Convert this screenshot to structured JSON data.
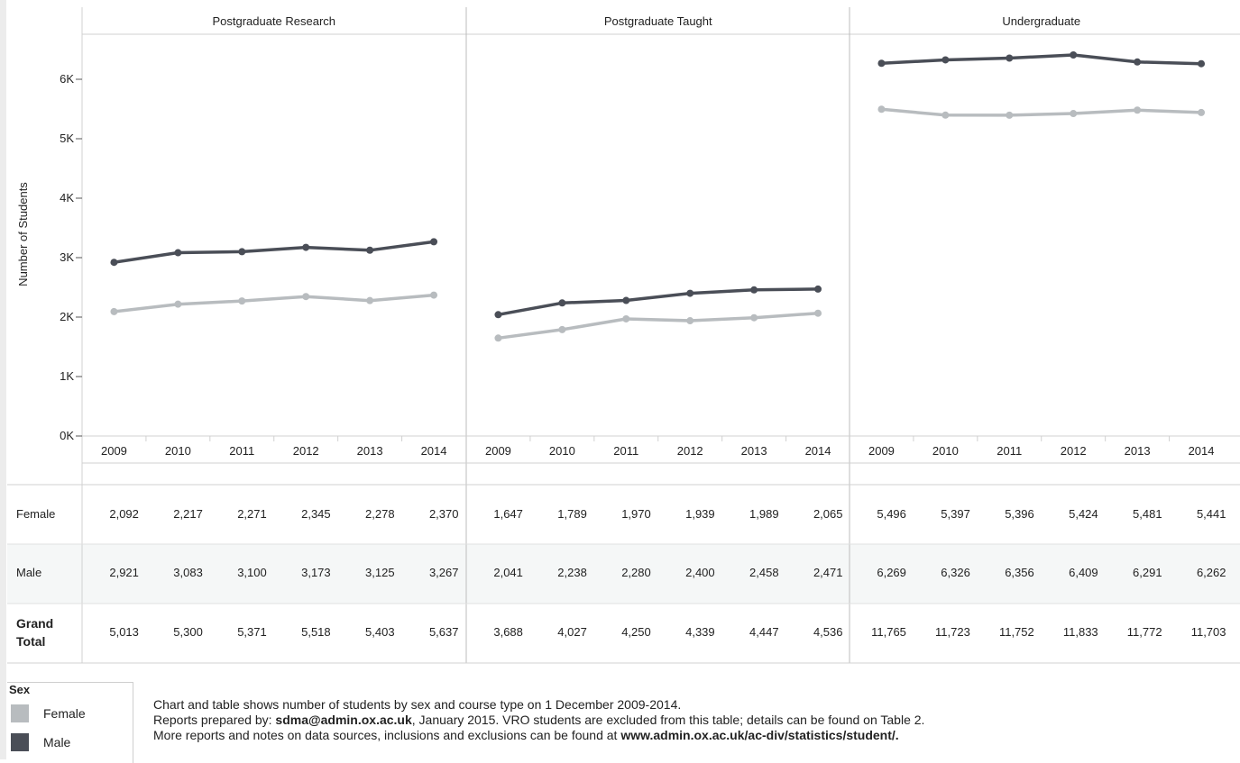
{
  "chart_data": {
    "type": "line",
    "ylabel": "Number of Students",
    "ylim": [
      0,
      6800
    ],
    "yticks": [
      {
        "value": 0,
        "label": "0K"
      },
      {
        "value": 1000,
        "label": "1K"
      },
      {
        "value": 2000,
        "label": "2K"
      },
      {
        "value": 3000,
        "label": "3K"
      },
      {
        "value": 4000,
        "label": "4K"
      },
      {
        "value": 5000,
        "label": "5K"
      },
      {
        "value": 6000,
        "label": "6K"
      }
    ],
    "x": [
      "2009",
      "2010",
      "2011",
      "2012",
      "2013",
      "2014"
    ],
    "panels": [
      {
        "title": "Postgraduate Research",
        "series": [
          {
            "name": "Female",
            "values": [
              2092,
              2217,
              2271,
              2345,
              2278,
              2370
            ]
          },
          {
            "name": "Male",
            "values": [
              2921,
              3083,
              3100,
              3173,
              3125,
              3267
            ]
          }
        ],
        "grand_total": [
          5013,
          5300,
          5371,
          5518,
          5403,
          5637
        ]
      },
      {
        "title": "Postgraduate Taught",
        "series": [
          {
            "name": "Female",
            "values": [
              1647,
              1789,
              1970,
              1939,
              1989,
              2065
            ]
          },
          {
            "name": "Male",
            "values": [
              2041,
              2238,
              2280,
              2400,
              2458,
              2471
            ]
          }
        ],
        "grand_total": [
          3688,
          4027,
          4250,
          4339,
          4447,
          4536
        ]
      },
      {
        "title": "Undergraduate",
        "series": [
          {
            "name": "Female",
            "values": [
              5496,
              5397,
              5396,
              5424,
              5481,
              5441
            ]
          },
          {
            "name": "Male",
            "values": [
              6269,
              6326,
              6356,
              6409,
              6291,
              6262
            ]
          }
        ],
        "grand_total": [
          11765,
          11723,
          11752,
          11833,
          11772,
          11703
        ]
      }
    ],
    "colors": {
      "Female": "#b8bcbf",
      "Male": "#4a4e57"
    }
  },
  "table": {
    "row_labels": [
      "Female",
      "Male"
    ],
    "grand_total_label_line1": "Grand",
    "grand_total_label_line2": "Total"
  },
  "legend": {
    "title": "Sex",
    "items": [
      {
        "label": "Female",
        "color": "#b8bcbf"
      },
      {
        "label": "Male",
        "color": "#4a4e57"
      }
    ]
  },
  "notes": {
    "line1": "Chart and table shows number of students by sex and course type on 1 December 2009-2014.",
    "line2_pre": "Reports prepared by: ",
    "line2_email": "sdma@admin.ox.ac.uk",
    "line2_post": ", January 2015. VRO students are excluded from this table; details can be found on Table 2.",
    "line3_pre": "More reports and notes on data sources, inclusions and exclusions can be found at ",
    "line3_url": "www.admin.ox.ac.uk/ac-div/statistics/student/."
  }
}
